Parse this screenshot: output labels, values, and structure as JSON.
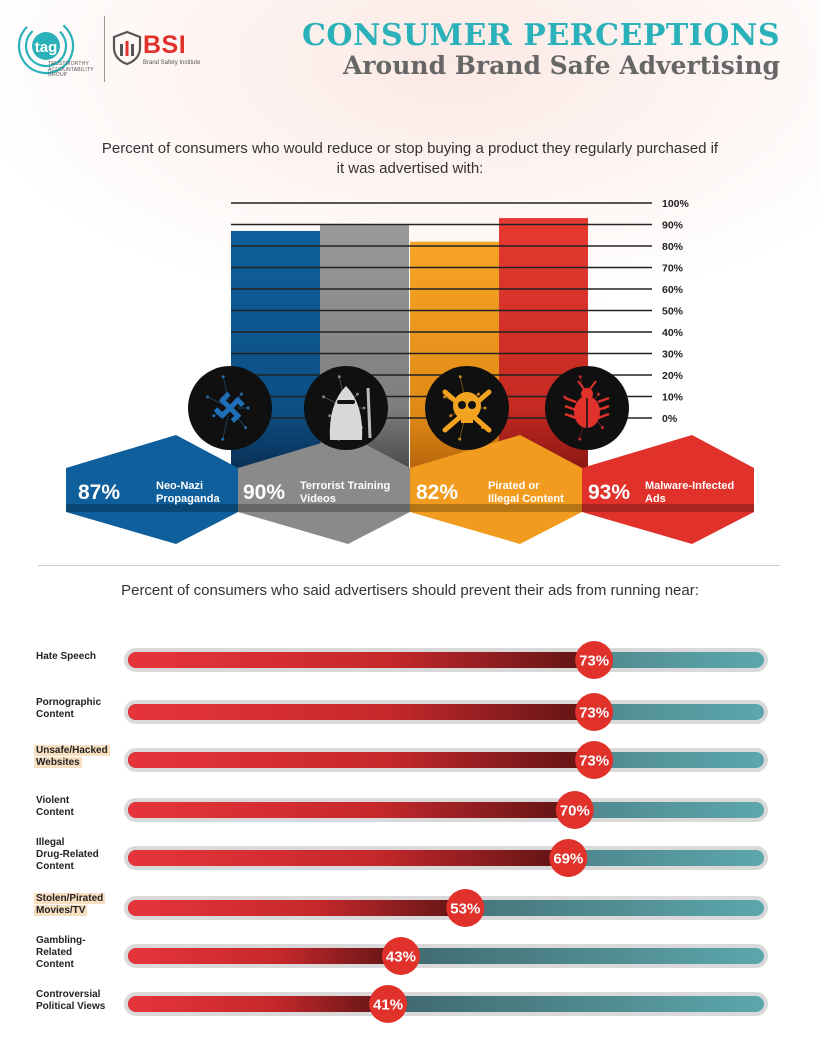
{
  "header": {
    "title_line1": "CONSUMER PERCEPTIONS",
    "title_line2": "Around Brand Safe Advertising",
    "tag_logo_text": "tag",
    "tag_subtitle": [
      "TRUSTWORTHY",
      "ACCOUNTABILITY",
      "GROUP"
    ],
    "bsi_logo_text": "BSI",
    "bsi_subtitle": "Brand Safety Institute"
  },
  "colors": {
    "title_teal": "#2bb1b9",
    "blue": "#0f5f9c",
    "gray": "#8a8a8a",
    "orange": "#f29c1f",
    "red": "#e0312b",
    "teal_bar": "#4ea0a6"
  },
  "chart_data": [
    {
      "type": "bar",
      "title": "Percent of consumers who would reduce or stop buying a product they regularly purchased if it was advertised with:",
      "categories": [
        "Neo-Nazi Propaganda",
        "Terrorist Training Videos",
        "Pirated or Illegal Content",
        "Malware-Infected Ads"
      ],
      "values": [
        87,
        90,
        82,
        93
      ],
      "value_labels": [
        "87%",
        "90%",
        "82%",
        "93%"
      ],
      "label_lines": [
        [
          "Neo-Nazi",
          "Propaganda"
        ],
        [
          "Terrorist Training",
          "Videos"
        ],
        [
          "Pirated or",
          "Illegal Content"
        ],
        [
          "Malware-Infected",
          "Ads"
        ]
      ],
      "icons": [
        "swastika-icon",
        "terrorist-icon",
        "skull-crossbones-icon",
        "bug-icon"
      ],
      "ylim": [
        0,
        100
      ],
      "yticks": [
        "0%",
        "10%",
        "20%",
        "30%",
        "40%",
        "50%",
        "60%",
        "70%",
        "80%",
        "90%",
        "100%"
      ],
      "grid": true,
      "bar_colors": [
        "#0f5f9c",
        "#8a8a8a",
        "#f29c1f",
        "#e0312b"
      ]
    },
    {
      "type": "bar",
      "orientation": "horizontal",
      "title": "Percent of consumers who said advertisers should prevent their ads from running near:",
      "categories": [
        "Hate Speech",
        "Pornographic Content",
        "Unsafe/Hacked Websites",
        "Violent Content",
        "Illegal Drug-Related Content",
        "Stolen/Pirated Movies/TV",
        "Gambling-Related Content",
        "Controversial Political Views"
      ],
      "label_lines": [
        [
          "Hate Speech"
        ],
        [
          "Pornographic",
          "Content"
        ],
        [
          "Unsafe/Hacked",
          "Websites"
        ],
        [
          "Violent",
          "Content"
        ],
        [
          "Illegal",
          "Drug-Related",
          "Content"
        ],
        [
          "Stolen/Pirated",
          "Movies/TV"
        ],
        [
          "Gambling-",
          "Related",
          "Content"
        ],
        [
          "Controversial",
          "Political Views"
        ]
      ],
      "highlighted": [
        false,
        false,
        true,
        false,
        false,
        true,
        false,
        false
      ],
      "values": [
        73,
        73,
        73,
        70,
        69,
        53,
        43,
        41
      ],
      "value_labels": [
        "73%",
        "73%",
        "73%",
        "70%",
        "69%",
        "53%",
        "43%",
        "41%"
      ],
      "xlim": [
        0,
        100
      ]
    }
  ]
}
